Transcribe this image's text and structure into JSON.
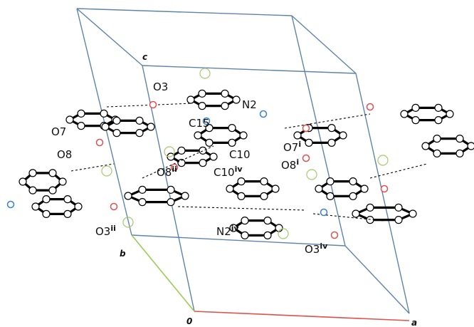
{
  "axes": {
    "c": "c",
    "b": "b",
    "origin": "0",
    "a": "a"
  },
  "atom_labels": [
    {
      "atom": "O3"
    },
    {
      "atom": "N2"
    },
    {
      "atom": "O7"
    },
    {
      "atom": "C15"
    },
    {
      "atom": "O8"
    },
    {
      "atom": "C10"
    },
    {
      "atom": "O8",
      "symmetry": "ii"
    },
    {
      "atom": "C10",
      "symmetry": "iv"
    },
    {
      "atom": "O7",
      "symmetry": "i"
    },
    {
      "atom": "O8",
      "symmetry": "i"
    },
    {
      "atom": "N2",
      "symmetry": "iv"
    },
    {
      "atom": "O3",
      "symmetry": "iv"
    },
    {
      "atom": "O3",
      "symmetry": "ii"
    }
  ]
}
